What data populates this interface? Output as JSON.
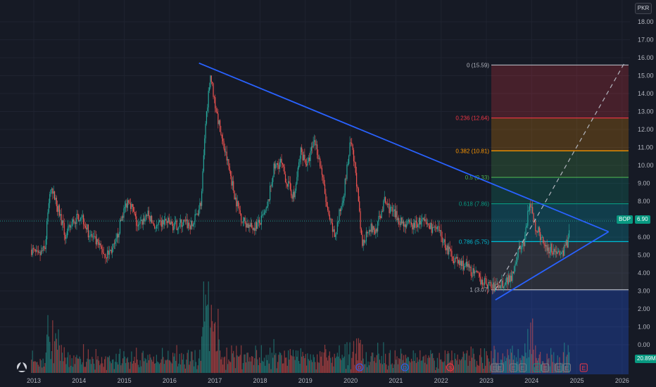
{
  "currency": "PKR",
  "symbol": "BOP",
  "last_price": "6.90",
  "volume_label": "20.89M",
  "logo_icon": "tradingview-icon",
  "colors": {
    "background": "#161a25",
    "up": "#26a69a",
    "down": "#ef5350",
    "trendline": "#2962ff"
  },
  "chart_data": {
    "type": "candlestick",
    "x_labels": [
      "2013",
      "2014",
      "2015",
      "2016",
      "2017",
      "2018",
      "2019",
      "2020",
      "2021",
      "2022",
      "2023",
      "2024",
      "2025",
      "2026"
    ],
    "y_ticks": [
      "18.00",
      "17.00",
      "16.00",
      "15.00",
      "14.00",
      "13.00",
      "12.00",
      "11.00",
      "10.00",
      "9.00",
      "8.00",
      "7.00",
      "6.00",
      "5.00",
      "4.00",
      "3.00",
      "2.00",
      "1.00",
      "0.00"
    ],
    "ylim": [
      -1.4,
      18.8
    ],
    "fib_levels": [
      {
        "label": "0 (15.59)",
        "value": 15.59,
        "color": "#b2b5be"
      },
      {
        "label": "0.236 (12.64)",
        "value": 12.64,
        "color": "#f23645"
      },
      {
        "label": "0.382 (10.81)",
        "value": 10.81,
        "color": "#ff9800"
      },
      {
        "label": "0.5 (9.33)",
        "value": 9.33,
        "color": "#4caf50"
      },
      {
        "label": "0.618 (7.86)",
        "value": 7.86,
        "color": "#089981"
      },
      {
        "label": "0.786 (5.75)",
        "value": 5.75,
        "color": "#00bcd4"
      },
      {
        "label": "1 (3.07)",
        "value": 3.07,
        "color": "#b2b5be"
      }
    ],
    "price_path": [
      [
        2012.95,
        5.3
      ],
      [
        2013.1,
        4.9
      ],
      [
        2013.25,
        5.4
      ],
      [
        2013.35,
        8.5
      ],
      [
        2013.45,
        8.3
      ],
      [
        2013.55,
        7.5
      ],
      [
        2013.7,
        6.0
      ],
      [
        2013.85,
        6.8
      ],
      [
        2014.05,
        7.3
      ],
      [
        2014.2,
        6.3
      ],
      [
        2014.4,
        5.6
      ],
      [
        2014.6,
        5.0
      ],
      [
        2014.8,
        5.5
      ],
      [
        2014.95,
        7.2
      ],
      [
        2015.1,
        8.2
      ],
      [
        2015.3,
        6.5
      ],
      [
        2015.5,
        7.3
      ],
      [
        2015.7,
        6.5
      ],
      [
        2015.9,
        6.9
      ],
      [
        2016.1,
        6.6
      ],
      [
        2016.3,
        6.8
      ],
      [
        2016.5,
        6.6
      ],
      [
        2016.7,
        8.0
      ],
      [
        2016.8,
        12.5
      ],
      [
        2016.9,
        15.1
      ],
      [
        2017.0,
        13.5
      ],
      [
        2017.15,
        11.5
      ],
      [
        2017.3,
        10.0
      ],
      [
        2017.45,
        8.2
      ],
      [
        2017.6,
        7.0
      ],
      [
        2017.8,
        6.5
      ],
      [
        2018.0,
        6.8
      ],
      [
        2018.15,
        7.5
      ],
      [
        2018.3,
        9.8
      ],
      [
        2018.45,
        10.2
      ],
      [
        2018.6,
        9.0
      ],
      [
        2018.75,
        8.2
      ],
      [
        2018.9,
        10.8
      ],
      [
        2019.05,
        10.0
      ],
      [
        2019.2,
        11.5
      ],
      [
        2019.35,
        9.8
      ],
      [
        2019.5,
        7.2
      ],
      [
        2019.65,
        6.0
      ],
      [
        2019.85,
        8.5
      ],
      [
        2020.0,
        11.3
      ],
      [
        2020.12,
        9.5
      ],
      [
        2020.25,
        5.5
      ],
      [
        2020.4,
        6.6
      ],
      [
        2020.55,
        6.3
      ],
      [
        2020.75,
        8.0
      ],
      [
        2020.95,
        7.3
      ],
      [
        2021.15,
        6.8
      ],
      [
        2021.35,
        6.6
      ],
      [
        2021.55,
        6.9
      ],
      [
        2021.75,
        6.6
      ],
      [
        2021.95,
        6.3
      ],
      [
        2022.15,
        5.3
      ],
      [
        2022.35,
        4.6
      ],
      [
        2022.55,
        4.4
      ],
      [
        2022.75,
        3.9
      ],
      [
        2022.95,
        3.5
      ],
      [
        2023.15,
        3.2
      ],
      [
        2023.35,
        3.4
      ],
      [
        2023.55,
        3.8
      ],
      [
        2023.7,
        5.2
      ],
      [
        2023.85,
        5.8
      ],
      [
        2023.95,
        8.0
      ],
      [
        2024.05,
        6.8
      ],
      [
        2024.2,
        6.0
      ],
      [
        2024.35,
        5.4
      ],
      [
        2024.5,
        5.3
      ],
      [
        2024.65,
        5.0
      ],
      [
        2024.78,
        5.6
      ],
      [
        2024.85,
        6.9
      ]
    ],
    "descending_trendline": [
      [
        2016.65,
        15.7
      ],
      [
        2025.7,
        6.3
      ]
    ],
    "ascending_trendline": [
      [
        2023.2,
        2.5
      ],
      [
        2025.7,
        6.3
      ]
    ],
    "projection_line": [
      [
        2023.2,
        3.07
      ],
      [
        2026.05,
        15.7
      ]
    ]
  }
}
